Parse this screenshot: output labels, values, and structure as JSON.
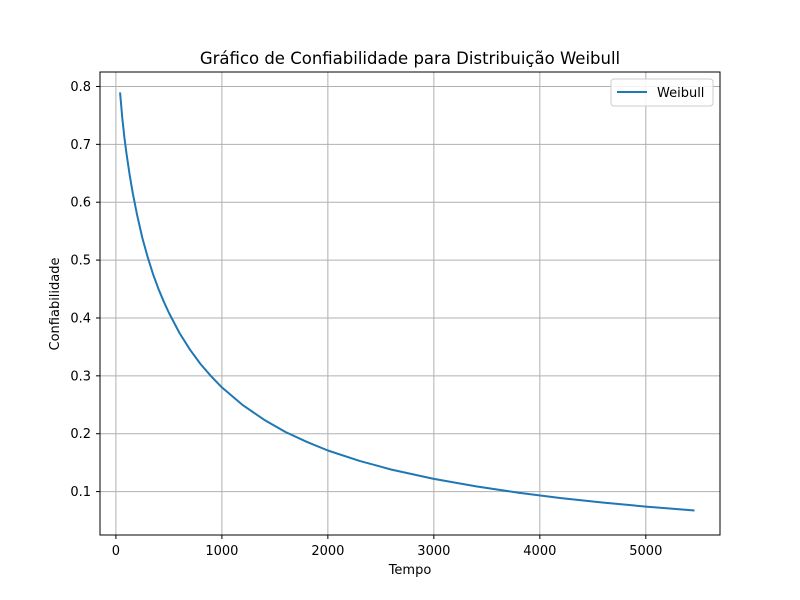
{
  "chart_data": {
    "type": "line",
    "title": "Gráfico de Confiabilidade para Distribuição Weibull",
    "xlabel": "Tempo",
    "ylabel": "Confiabilidade",
    "xlim": [
      -150,
      5700
    ],
    "ylim": [
      0.025,
      0.825
    ],
    "xticks": [
      0,
      1000,
      2000,
      3000,
      4000,
      5000
    ],
    "xtick_labels": [
      "0",
      "1000",
      "2000",
      "3000",
      "4000",
      "5000"
    ],
    "yticks": [
      0.1,
      0.2,
      0.3,
      0.4,
      0.5,
      0.6,
      0.7,
      0.8
    ],
    "ytick_labels": [
      "0.1",
      "0.2",
      "0.3",
      "0.4",
      "0.5",
      "0.6",
      "0.7",
      "0.8"
    ],
    "grid": true,
    "legend_position": "top-right",
    "series": [
      {
        "name": "Weibull",
        "color": "#1f77b4",
        "x": [
          40,
          60,
          80,
          100,
          130,
          160,
          200,
          250,
          300,
          350,
          400,
          450,
          500,
          600,
          700,
          800,
          900,
          1000,
          1200,
          1400,
          1600,
          1800,
          2000,
          2300,
          2600,
          3000,
          3400,
          3800,
          4200,
          4600,
          5000,
          5450
        ],
        "y": [
          0.788,
          0.746,
          0.712,
          0.684,
          0.647,
          0.615,
          0.578,
          0.538,
          0.505,
          0.476,
          0.451,
          0.429,
          0.409,
          0.374,
          0.345,
          0.32,
          0.299,
          0.28,
          0.249,
          0.224,
          0.203,
          0.186,
          0.171,
          0.153,
          0.138,
          0.122,
          0.109,
          0.098,
          0.0888,
          0.0809,
          0.0741,
          0.0675
        ]
      }
    ]
  }
}
